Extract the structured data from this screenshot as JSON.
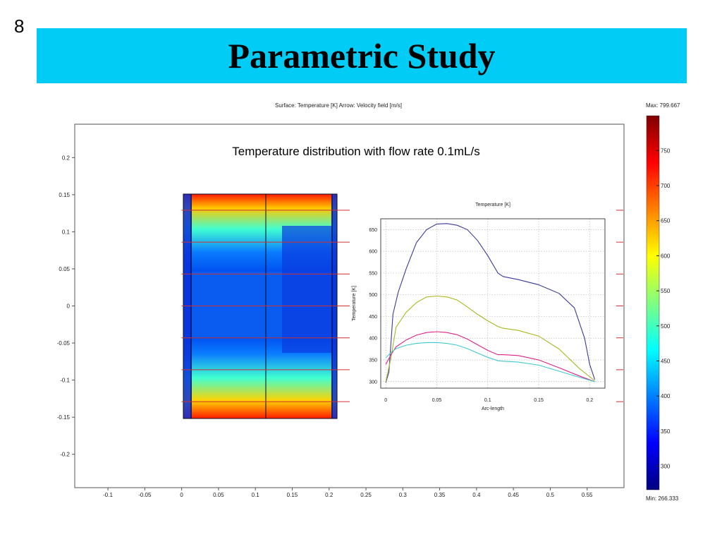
{
  "slide": {
    "number": "8",
    "title": "Parametric Study"
  },
  "figure": {
    "header": "Surface: Temperature [K]   Arrow: Velocity field [m/s]",
    "annotation": "Temperature distribution with flow rate 0.1mL/s",
    "colorbar_max": "Max: 799.667",
    "colorbar_min": "Min: 266.333"
  },
  "chart_data": [
    {
      "type": "heatmap",
      "title": "Surface: Temperature [K]   Arrow: Velocity field [m/s]",
      "x_ticks": [
        "-0.1",
        "-0.05",
        "0",
        "0.05",
        "0.1",
        "0.15",
        "0.2",
        "0.25",
        "0.3",
        "0.35",
        "0.4",
        "0.45",
        "0.5",
        "0.55"
      ],
      "y_ticks": [
        "0.2",
        "0.15",
        "0.1",
        "0.05",
        "0",
        "-0.05",
        "-0.1",
        "-0.15",
        "-0.2"
      ],
      "xlim": [
        -0.145,
        0.6
      ],
      "ylim": [
        -0.245,
        0.245
      ],
      "domain_x": [
        0,
        0.206
      ],
      "domain_y": [
        -0.15,
        0.15
      ],
      "colorbar": {
        "ticks": [
          750,
          700,
          650,
          600,
          550,
          500,
          450,
          400,
          350,
          300
        ],
        "min": 266.333,
        "max": 799.667,
        "colors": [
          "#00007f",
          "#0000ff",
          "#0080ff",
          "#00ffff",
          "#80ff80",
          "#ffff00",
          "#ff8000",
          "#ff0000",
          "#7f0000"
        ]
      },
      "cut_lines_y": [
        0.129,
        0.086,
        0.043,
        0,
        -0.043,
        -0.086,
        -0.129
      ]
    },
    {
      "type": "line",
      "title": "Temperature [K]",
      "xlabel": "Arc-length",
      "ylabel": "Temperature [K]",
      "x_ticks": [
        0,
        0.05,
        0.1,
        0.15,
        0.2
      ],
      "y_ticks": [
        300,
        350,
        400,
        450,
        500,
        550,
        600,
        650
      ],
      "xlim": [
        -0.005,
        0.215
      ],
      "ylim": [
        285,
        675
      ],
      "grid": true,
      "series": [
        {
          "color": "#3a3a9a",
          "x": [
            0,
            0.003,
            0.007,
            0.012,
            0.02,
            0.03,
            0.04,
            0.05,
            0.06,
            0.07,
            0.08,
            0.09,
            0.1,
            0.11,
            0.115,
            0.13,
            0.15,
            0.17,
            0.185,
            0.195,
            0.2,
            0.205
          ],
          "y": [
            298,
            322,
            455,
            505,
            560,
            620,
            650,
            663,
            664,
            660,
            650,
            625,
            590,
            550,
            542,
            535,
            523,
            503,
            470,
            400,
            340,
            305
          ]
        },
        {
          "color": "#a8b820",
          "x": [
            0,
            0.005,
            0.01,
            0.02,
            0.03,
            0.04,
            0.05,
            0.06,
            0.07,
            0.08,
            0.09,
            0.1,
            0.11,
            0.115,
            0.13,
            0.15,
            0.17,
            0.19,
            0.205
          ],
          "y": [
            300,
            355,
            425,
            460,
            482,
            495,
            497,
            495,
            488,
            472,
            455,
            440,
            427,
            423,
            418,
            405,
            375,
            330,
            302
          ]
        },
        {
          "color": "#e0208a",
          "x": [
            0,
            0.005,
            0.01,
            0.02,
            0.03,
            0.04,
            0.05,
            0.06,
            0.07,
            0.08,
            0.09,
            0.1,
            0.11,
            0.115,
            0.13,
            0.15,
            0.17,
            0.19,
            0.205
          ],
          "y": [
            340,
            362,
            380,
            396,
            407,
            413,
            415,
            413,
            408,
            398,
            385,
            372,
            362,
            362,
            360,
            350,
            332,
            313,
            300
          ]
        },
        {
          "color": "#40c8d0",
          "x": [
            0,
            0.005,
            0.01,
            0.02,
            0.03,
            0.04,
            0.05,
            0.06,
            0.07,
            0.08,
            0.09,
            0.1,
            0.11,
            0.115,
            0.13,
            0.15,
            0.17,
            0.19,
            0.205
          ],
          "y": [
            355,
            367,
            376,
            384,
            388,
            390,
            390,
            388,
            384,
            376,
            366,
            356,
            348,
            347,
            345,
            338,
            324,
            310,
            300
          ]
        }
      ]
    }
  ]
}
